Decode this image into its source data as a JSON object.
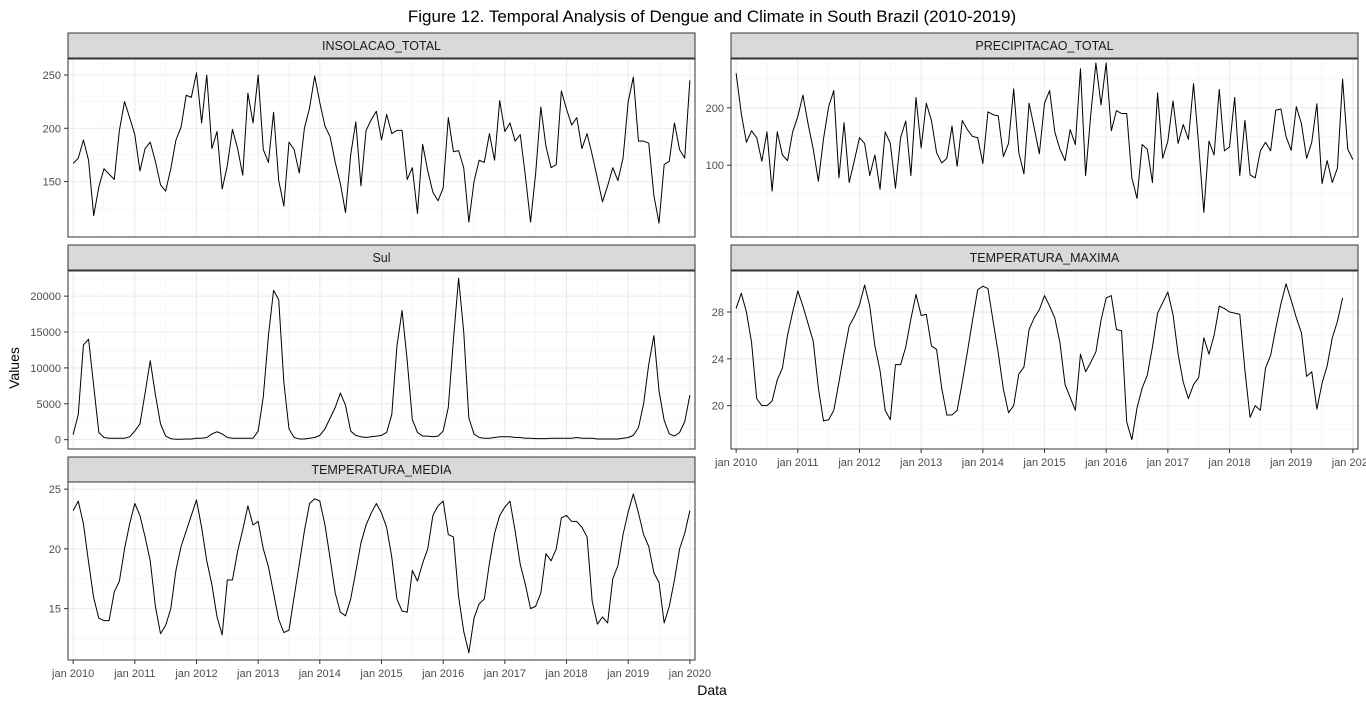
{
  "figure": {
    "title": "Figure 12. Temporal Analysis of Dengue and Climate in South Brazil (2010-2019)",
    "xlabel": "Data",
    "ylabel": "Values"
  },
  "colors": {
    "strip_fill": "#d9d9d9",
    "panel_border": "#333333",
    "grid_major": "#ebebeb",
    "grid_minor": "#f5f5f5",
    "line": "#000000"
  },
  "chart_data": {
    "type": "line",
    "layout": "facet_wrap, 2 columns, free y scales",
    "grid": true,
    "x_ticks": [
      "jan 2010",
      "jan 2011",
      "jan 2012",
      "jan 2013",
      "jan 2014",
      "jan 2015",
      "jan 2016",
      "jan 2017",
      "jan 2018",
      "jan 2019",
      "jan 2020"
    ],
    "x_range": [
      "2009-12",
      "2020-02"
    ],
    "x_start": "2010-01",
    "x_frequency": "monthly",
    "panels": [
      {
        "name": "INSOLACAO_TOTAL",
        "ylim": [
          98,
          265
        ],
        "yticks": [
          150,
          200,
          250
        ],
        "values": [
          167,
          172,
          189,
          170,
          118,
          145,
          162,
          157,
          152,
          198,
          225,
          210,
          194,
          160,
          181,
          187,
          169,
          147,
          141,
          162,
          189,
          201,
          231,
          229,
          252,
          205,
          250,
          181,
          197,
          143,
          165,
          199,
          181,
          156,
          233,
          205,
          250,
          180,
          168,
          215,
          151,
          127,
          187,
          180,
          158,
          200,
          219,
          249,
          224,
          202,
          192,
          168,
          148,
          121,
          175,
          206,
          146,
          198,
          208,
          216,
          189,
          213,
          195,
          198,
          198,
          152,
          163,
          120,
          185,
          160,
          140,
          132,
          144,
          210,
          178,
          179,
          163,
          112,
          150,
          170,
          168,
          195,
          170,
          226,
          197,
          205,
          188,
          194,
          155,
          112,
          158,
          220,
          183,
          163,
          166,
          235,
          218,
          203,
          210,
          181,
          195,
          175,
          153,
          131,
          146,
          163,
          151,
          172,
          225,
          248,
          188,
          188,
          186,
          137,
          111,
          166,
          169,
          205,
          180,
          172,
          245
        ]
      },
      {
        "name": "PRECIPITACAO_TOTAL",
        "ylim": [
          -25,
          285
        ],
        "yticks": [
          100,
          200
        ],
        "values": [
          260,
          190,
          140,
          160,
          148,
          107,
          158,
          55,
          158,
          118,
          108,
          158,
          185,
          222,
          172,
          128,
          72,
          146,
          202,
          230,
          78,
          174,
          70,
          108,
          148,
          138,
          82,
          118,
          58,
          158,
          138,
          60,
          148,
          177,
          82,
          218,
          130,
          208,
          178,
          122,
          104,
          112,
          168,
          98,
          178,
          162,
          150,
          148,
          103,
          193,
          188,
          186,
          115,
          138,
          233,
          122,
          85,
          208,
          165,
          120,
          208,
          230,
          158,
          128,
          108,
          162,
          136,
          268,
          82,
          188,
          278,
          205,
          278,
          160,
          195,
          190,
          190,
          78,
          42,
          136,
          128,
          70,
          226,
          112,
          142,
          212,
          138,
          171,
          145,
          242,
          135,
          18,
          142,
          118,
          232,
          125,
          132,
          218,
          82,
          178,
          83,
          78,
          125,
          140,
          125,
          196,
          198,
          150,
          126,
          202,
          172,
          112,
          140,
          207,
          68,
          108,
          70,
          95,
          250,
          128,
          110
        ]
      },
      {
        "name": "Sul",
        "ylim": [
          -1300,
          23500
        ],
        "yticks": [
          0,
          5000,
          10000,
          15000,
          20000
        ],
        "values": [
          700,
          3500,
          13200,
          14000,
          7500,
          1000,
          300,
          200,
          200,
          200,
          200,
          400,
          1200,
          2200,
          6500,
          11000,
          6300,
          2200,
          500,
          150,
          50,
          50,
          100,
          100,
          200,
          200,
          300,
          800,
          1100,
          800,
          300,
          200,
          200,
          200,
          200,
          200,
          1200,
          6000,
          14500,
          20800,
          19500,
          8000,
          1500,
          300,
          100,
          100,
          200,
          300,
          600,
          1500,
          3000,
          4500,
          6500,
          4800,
          1200,
          600,
          400,
          300,
          400,
          500,
          600,
          1000,
          3500,
          13000,
          18000,
          11000,
          2800,
          1000,
          500,
          500,
          400,
          500,
          1200,
          4500,
          14000,
          22500,
          15000,
          3000,
          800,
          300,
          200,
          200,
          300,
          400,
          400,
          400,
          300,
          300,
          200,
          200,
          150,
          150,
          150,
          200,
          200,
          200,
          200,
          200,
          300,
          200,
          200,
          200,
          100,
          100,
          100,
          100,
          100,
          200,
          300,
          600,
          1700,
          5000,
          10500,
          14500,
          6800,
          2700,
          800,
          500,
          1000,
          2500,
          6200
        ]
      },
      {
        "name": "TEMPERATURA_MAXIMA",
        "ylim": [
          16.3,
          31.5
        ],
        "yticks": [
          20,
          24,
          28
        ],
        "values": [
          28.3,
          29.6,
          28.0,
          25.4,
          20.6,
          20.0,
          20.0,
          20.4,
          22.2,
          23.2,
          26.0,
          28.0,
          29.8,
          28.5,
          27.0,
          25.5,
          21.5,
          18.7,
          18.8,
          19.6,
          22.0,
          24.5,
          26.8,
          27.6,
          28.6,
          30.3,
          28.5,
          25.1,
          23.0,
          19.6,
          18.8,
          23.5,
          23.5,
          25.0,
          27.4,
          29.5,
          27.7,
          27.8,
          25.1,
          24.8,
          21.5,
          19.2,
          19.2,
          19.6,
          22.0,
          24.6,
          27.3,
          29.9,
          30.2,
          30.0,
          27.2,
          24.5,
          21.4,
          19.4,
          20.0,
          22.7,
          23.3,
          26.5,
          27.5,
          28.2,
          29.4,
          28.5,
          27.5,
          25.4,
          21.8,
          20.7,
          19.6,
          24.4,
          22.9,
          23.7,
          24.6,
          27.3,
          29.2,
          29.4,
          26.5,
          26.4,
          18.6,
          17.1,
          19.8,
          21.5,
          22.6,
          25.0,
          27.9,
          28.8,
          29.7,
          27.8,
          24.4,
          22.0,
          20.6,
          21.8,
          22.4,
          25.8,
          24.4,
          26.0,
          28.5,
          28.3,
          28.0,
          27.9,
          27.8,
          23.0,
          19.0,
          20.0,
          19.6,
          23.2,
          24.3,
          26.6,
          28.7,
          30.4,
          29.0,
          27.5,
          26.2,
          22.5,
          22.9,
          19.7,
          21.9,
          23.4,
          25.8,
          27.2,
          29.2
        ]
      },
      {
        "name": "TEMPERATURA_MEDIA",
        "ylim": [
          10.7,
          25.6
        ],
        "yticks": [
          15,
          20,
          25
        ],
        "values": [
          23.2,
          24.0,
          22.1,
          18.9,
          15.9,
          14.2,
          14.0,
          14.0,
          16.4,
          17.3,
          20.0,
          22.1,
          23.8,
          22.8,
          21.0,
          19.0,
          15.2,
          12.9,
          13.6,
          15.0,
          18.2,
          20.2,
          21.5,
          22.8,
          24.1,
          21.8,
          19.0,
          17.0,
          14.3,
          12.8,
          17.4,
          17.4,
          19.8,
          21.6,
          23.6,
          22.0,
          22.3,
          20.0,
          18.5,
          16.3,
          14.1,
          13.0,
          13.2,
          16.0,
          18.7,
          21.5,
          23.8,
          24.2,
          24.0,
          22.0,
          19.2,
          16.3,
          14.7,
          14.4,
          15.8,
          18.1,
          20.5,
          22.0,
          23.0,
          23.8,
          23.0,
          21.8,
          19.3,
          15.8,
          14.8,
          14.7,
          18.2,
          17.3,
          18.8,
          20.0,
          22.8,
          23.6,
          24.0,
          21.2,
          21.0,
          16.0,
          13.1,
          11.3,
          14.2,
          15.4,
          15.8,
          18.8,
          21.3,
          22.8,
          23.5,
          24.0,
          21.5,
          18.7,
          17.0,
          15.0,
          15.2,
          16.3,
          19.6,
          19.0,
          20.0,
          22.6,
          22.8,
          22.3,
          22.3,
          21.8,
          21.0,
          15.6,
          13.7,
          14.3,
          13.8,
          17.5,
          18.6,
          21.2,
          23.1,
          24.6,
          23.0,
          21.2,
          20.2,
          18.0,
          17.2,
          13.8,
          15.2,
          17.4,
          20.0,
          21.3,
          23.2
        ]
      }
    ]
  }
}
